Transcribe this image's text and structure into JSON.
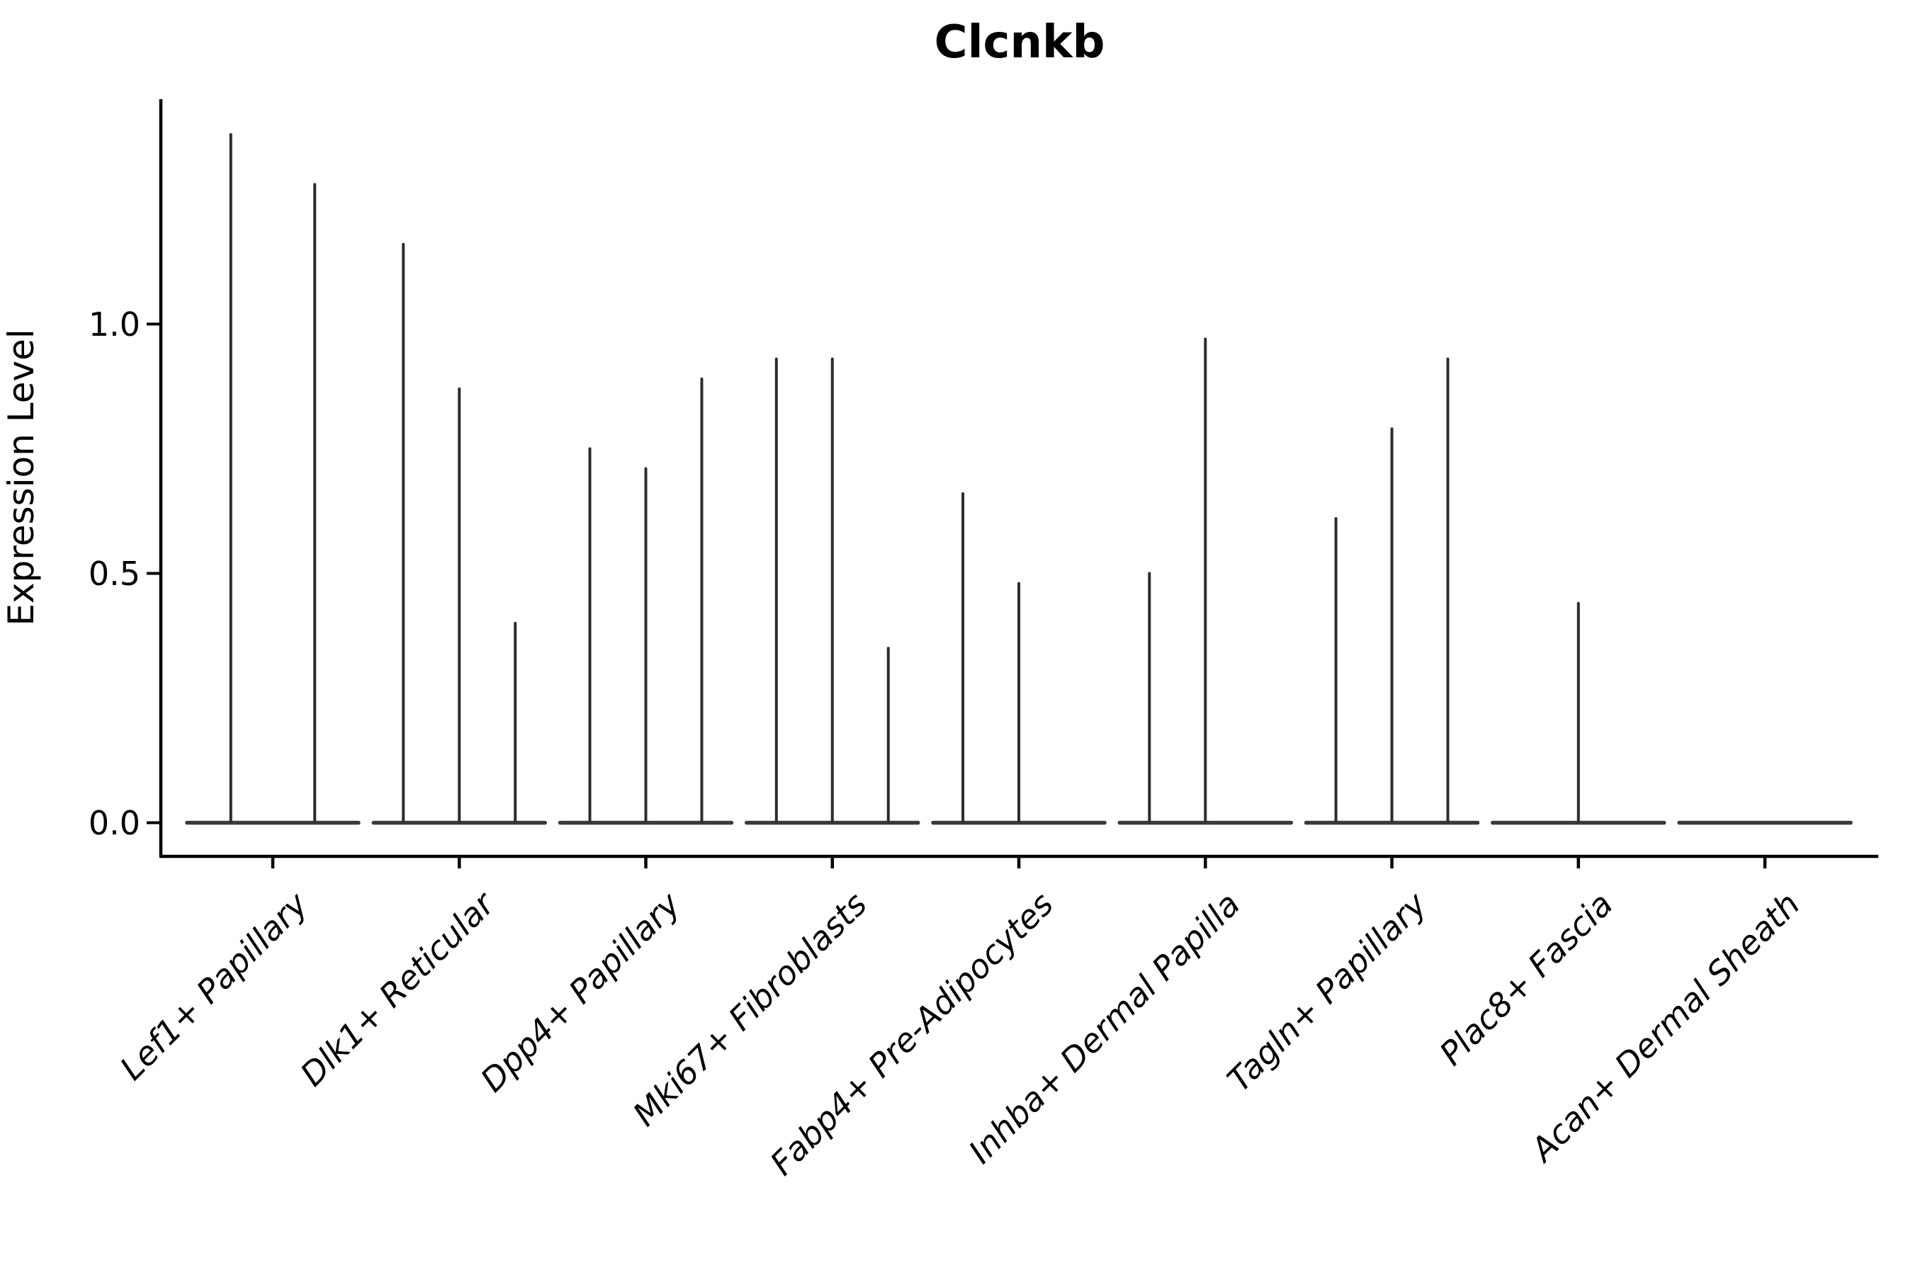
{
  "title": "Clcnkb",
  "chart_data": {
    "type": "violin",
    "title": "Clcnkb",
    "xlabel": "",
    "ylabel": "Expression Level",
    "ytick_labels": [
      "0.0",
      "0.5",
      "1.0"
    ],
    "ytick_values": [
      0.0,
      0.5,
      1.0
    ],
    "ylim": [
      -0.07,
      1.45
    ],
    "grid": false,
    "legend_position": "none",
    "categories": [
      "Lef1+ Papillary",
      "Dlk1+ Reticular",
      "Dpp4+ Papillary",
      "Mki67+ Fibroblasts",
      "Fabp4+ Pre-Adipocytes",
      "Inhba+ Dermal Papilla",
      "Tagln+ Papillary",
      "Plac8+ Fascia",
      "Acan+ Dermal Sheath"
    ],
    "groups": [
      {
        "category": "Lef1+ Papillary",
        "violins": [
          {
            "offset": -0.225,
            "peak": 1.38
          },
          {
            "offset": 0.225,
            "peak": 1.28
          }
        ]
      },
      {
        "category": "Dlk1+ Reticular",
        "violins": [
          {
            "offset": -0.3,
            "peak": 1.16
          },
          {
            "offset": 0,
            "peak": 0.87
          },
          {
            "offset": 0.3,
            "peak": 0.4
          }
        ]
      },
      {
        "category": "Dpp4+ Papillary",
        "violins": [
          {
            "offset": -0.3,
            "peak": 0.75
          },
          {
            "offset": 0,
            "peak": 0.71
          },
          {
            "offset": 0.3,
            "peak": 0.89
          }
        ]
      },
      {
        "category": "Mki67+ Fibroblasts",
        "violins": [
          {
            "offset": -0.3,
            "peak": 0.93
          },
          {
            "offset": 0,
            "peak": 0.93
          },
          {
            "offset": 0.3,
            "peak": 0.35
          }
        ]
      },
      {
        "category": "Fabp4+ Pre-Adipocytes",
        "violins": [
          {
            "offset": -0.3,
            "peak": 0.66
          },
          {
            "offset": 0,
            "peak": 0.48
          },
          {
            "offset": 0.3,
            "peak": 0.0
          }
        ]
      },
      {
        "category": "Inhba+ Dermal Papilla",
        "violins": [
          {
            "offset": -0.3,
            "peak": 0.5
          },
          {
            "offset": 0,
            "peak": 0.97
          },
          {
            "offset": 0.3,
            "peak": 0.0
          }
        ]
      },
      {
        "category": "Tagln+ Papillary",
        "violins": [
          {
            "offset": -0.3,
            "peak": 0.61
          },
          {
            "offset": 0,
            "peak": 0.79
          },
          {
            "offset": 0.3,
            "peak": 0.93
          }
        ]
      },
      {
        "category": "Plac8+ Fascia",
        "violins": [
          {
            "offset": 0,
            "peak": 0.44
          }
        ]
      },
      {
        "category": "Acan+ Dermal Sheath",
        "violins": [
          {
            "offset": 0,
            "peak": 0.0
          }
        ]
      }
    ],
    "style": {
      "violin_color": "#2d2d2d",
      "base_color": "#3a3a3a",
      "axis_color": "#000000",
      "background": "#ffffff"
    }
  }
}
